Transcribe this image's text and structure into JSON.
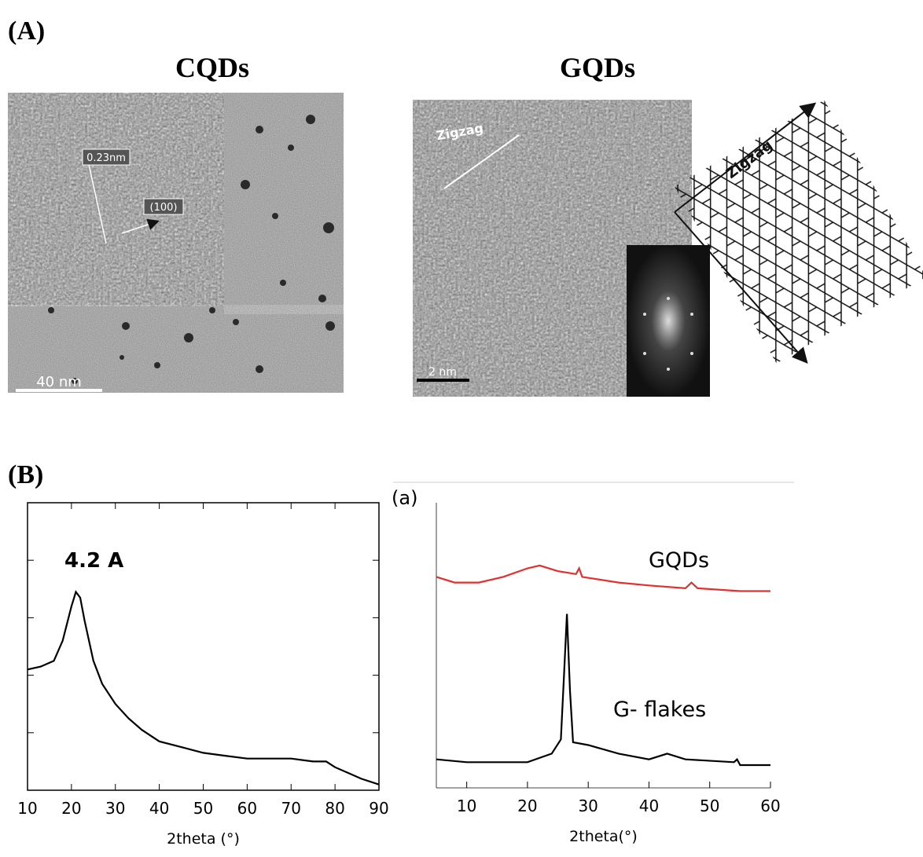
{
  "figure": {
    "panel_a": "(A)",
    "panel_b": "(B)",
    "cqds_title": "CQDs",
    "gqds_title": "GQDs",
    "cqds_labels": [
      "0.23nm",
      "(100)",
      "40 nm"
    ],
    "gqds_labels": [
      "Zigzag",
      "2 nm",
      "Zigzag"
    ]
  },
  "chart_data": [
    {
      "type": "line",
      "x_label": "2theta (°)",
      "annotation": "4.2 A",
      "color": "#000000",
      "x": [
        10,
        13,
        16,
        18,
        20,
        21,
        22,
        23,
        25,
        27,
        30,
        33,
        36,
        40,
        45,
        50,
        55,
        60,
        65,
        70,
        75,
        78,
        80,
        83,
        86,
        90
      ],
      "values": [
        42,
        43,
        45,
        52,
        64,
        69,
        67,
        59,
        45,
        37,
        30,
        25,
        21,
        17,
        15,
        13,
        12,
        11,
        11,
        11,
        10,
        10,
        8,
        6,
        4,
        2
      ],
      "xlim": [
        10,
        90
      ],
      "xticks": [
        10,
        20,
        30,
        40,
        50,
        60,
        70,
        80,
        90
      ],
      "ylim": [
        0,
        100
      ]
    },
    {
      "type": "line",
      "x_label": "2theta(°)",
      "annotation": "(a)",
      "series": [
        {
          "name": "GQDs",
          "color": "#e03030",
          "x": [
            5,
            8,
            12,
            16,
            20,
            22,
            25,
            28,
            28.5,
            29,
            35,
            40,
            46,
            47,
            48,
            55,
            60
          ],
          "values": [
            74,
            72,
            72,
            74,
            77,
            78,
            76,
            75,
            77,
            74,
            72,
            71,
            70,
            72,
            70,
            69,
            69
          ]
        },
        {
          "name": "G- flakes",
          "color": "#000000",
          "x": [
            5,
            10,
            15,
            20,
            24,
            25.5,
            26,
            26.5,
            27,
            27.5,
            30,
            35,
            40,
            43,
            46,
            54,
            54.5,
            55,
            60
          ],
          "values": [
            10,
            9,
            9,
            9,
            12,
            17,
            39,
            61,
            34,
            16,
            15,
            12,
            10,
            12,
            10,
            9,
            10,
            8,
            8
          ]
        }
      ],
      "xlim": [
        5,
        60
      ],
      "xticks": [
        10,
        20,
        30,
        40,
        50,
        60
      ],
      "ylim": [
        0,
        100
      ]
    }
  ]
}
